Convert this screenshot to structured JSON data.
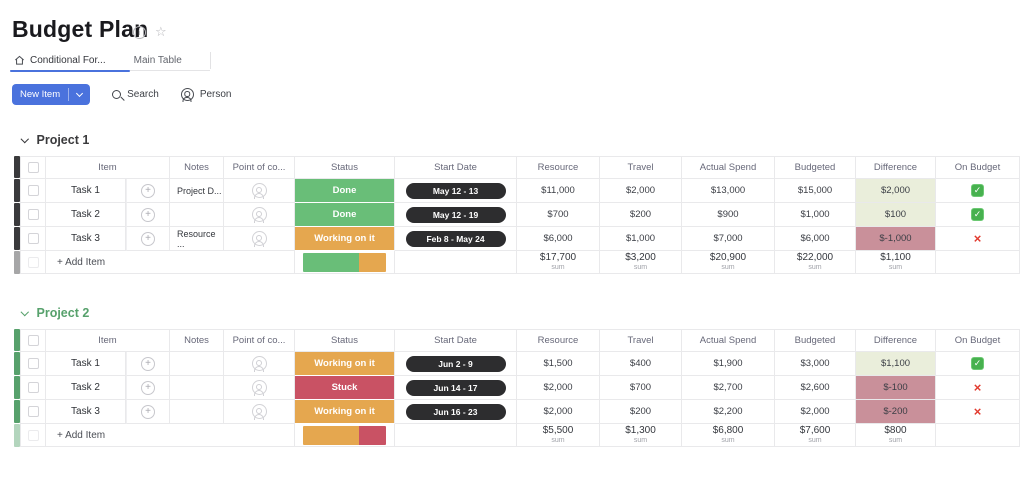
{
  "app": {
    "title": "Budget Plan"
  },
  "icons": {
    "plus": "+",
    "info": "i",
    "star": "☆",
    "check": "✓",
    "cross": "×"
  },
  "tabs": [
    {
      "label": "Conditional For...",
      "active": true
    },
    {
      "label": "Main Table",
      "active": false
    }
  ],
  "toolbar": {
    "new_item": "New Item",
    "search": "Search",
    "person": "Person"
  },
  "labels": {
    "sum": "sum",
    "add_item": "+ Add Item"
  },
  "table": {
    "columns": [
      "Item",
      "Notes",
      "Point of co...",
      "Status",
      "Start Date",
      "Resource",
      "Travel",
      "Actual Spend",
      "Budgeted",
      "Difference",
      "On Budget"
    ]
  },
  "colors": {
    "accent": "#4a72dd",
    "status": {
      "done": "#69be78",
      "working": "#e5a74f",
      "stuck": "#c95264"
    },
    "diff": {
      "positive": "#eaeedb",
      "negative": "#c9909a"
    },
    "pill": "#2d2d2f"
  },
  "groups": [
    {
      "name": "Project 1",
      "color": "#3a3a3c",
      "rows": [
        {
          "item": "Task 1",
          "notes": "Project D...",
          "status": "Done",
          "status_key": "done",
          "date": "May 12 - 13",
          "resource": "$11,000",
          "travel": "$2,000",
          "actual_spend": "$13,000",
          "budgeted": "$15,000",
          "difference": "$2,000",
          "diff_key": "positive",
          "on_budget": "check"
        },
        {
          "item": "Task 2",
          "notes": "",
          "status": "Done",
          "status_key": "done",
          "date": "May 12 - 19",
          "resource": "$700",
          "travel": "$200",
          "actual_spend": "$900",
          "budgeted": "$1,000",
          "difference": "$100",
          "diff_key": "positive",
          "on_budget": "check"
        },
        {
          "item": "Task 3",
          "notes": "Resource ...",
          "status": "Working on it",
          "status_key": "working",
          "date": "Feb 8 - May 24",
          "resource": "$6,000",
          "travel": "$1,000",
          "actual_spend": "$7,000",
          "budgeted": "$6,000",
          "difference": "$-1,000",
          "diff_key": "negative",
          "on_budget": "cross"
        }
      ],
      "distribution": [
        {
          "key": "done",
          "pct": 67
        },
        {
          "key": "working",
          "pct": 33
        }
      ],
      "sums": {
        "resource": "$17,700",
        "travel": "$3,200",
        "actual_spend": "$20,900",
        "budgeted": "$22,000",
        "difference": "$1,100"
      }
    },
    {
      "name": "Project 2",
      "color": "#57a16c",
      "rows": [
        {
          "item": "Task 1",
          "notes": "",
          "status": "Working on it",
          "status_key": "working",
          "date": "Jun 2 - 9",
          "resource": "$1,500",
          "travel": "$400",
          "actual_spend": "$1,900",
          "budgeted": "$3,000",
          "difference": "$1,100",
          "diff_key": "positive",
          "on_budget": "check"
        },
        {
          "item": "Task 2",
          "notes": "",
          "status": "Stuck",
          "status_key": "stuck",
          "date": "Jun 14 - 17",
          "resource": "$2,000",
          "travel": "$700",
          "actual_spend": "$2,700",
          "budgeted": "$2,600",
          "difference": "$-100",
          "diff_key": "negative",
          "on_budget": "cross"
        },
        {
          "item": "Task 3",
          "notes": "",
          "status": "Working on it",
          "status_key": "working",
          "date": "Jun 16 - 23",
          "resource": "$2,000",
          "travel": "$200",
          "actual_spend": "$2,200",
          "budgeted": "$2,000",
          "difference": "$-200",
          "diff_key": "negative",
          "on_budget": "cross"
        }
      ],
      "distribution": [
        {
          "key": "working",
          "pct": 67
        },
        {
          "key": "stuck",
          "pct": 33
        }
      ],
      "sums": {
        "resource": "$5,500",
        "travel": "$1,300",
        "actual_spend": "$6,800",
        "budgeted": "$7,600",
        "difference": "$800"
      }
    }
  ]
}
